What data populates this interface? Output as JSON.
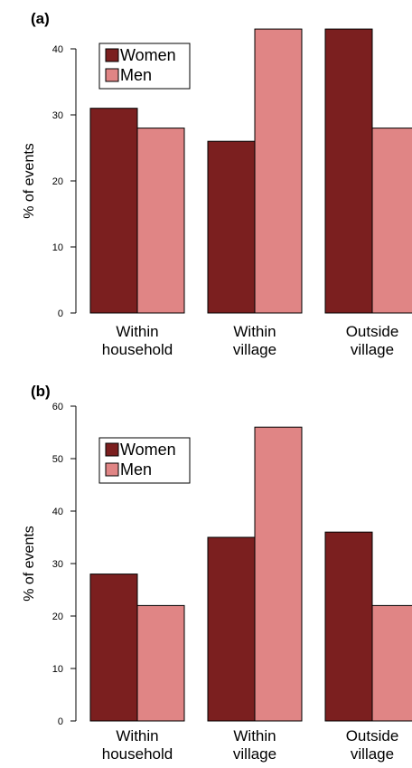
{
  "colors": {
    "women": "#7b1f1f",
    "men": "#e08585"
  },
  "chart_data": [
    {
      "type": "bar",
      "panel_label": "(a)",
      "ylabel": "% of events",
      "ylim": [
        0,
        43
      ],
      "yticks": [
        "0",
        "10",
        "20",
        "30",
        "40"
      ],
      "categories": [
        "Within\nhousehold",
        "Within\nvillage",
        "Outside\nvillage"
      ],
      "legend": {
        "position": "top-left"
      },
      "series": [
        {
          "name": "Women",
          "values": [
            31,
            26,
            43
          ]
        },
        {
          "name": "Men",
          "values": [
            28,
            43,
            28
          ]
        }
      ]
    },
    {
      "type": "bar",
      "panel_label": "(b)",
      "ylabel": "% of events",
      "ylim": [
        0,
        56
      ],
      "yticks": [
        "0",
        "10",
        "20",
        "30",
        "40",
        "50",
        "60"
      ],
      "categories": [
        "Within\nhousehold",
        "Within\nvillage",
        "Outside\nvillage"
      ],
      "legend": {
        "position": "top-left"
      },
      "series": [
        {
          "name": "Women",
          "values": [
            28,
            35,
            36
          ]
        },
        {
          "name": "Men",
          "values": [
            22,
            56,
            22
          ]
        }
      ]
    }
  ]
}
